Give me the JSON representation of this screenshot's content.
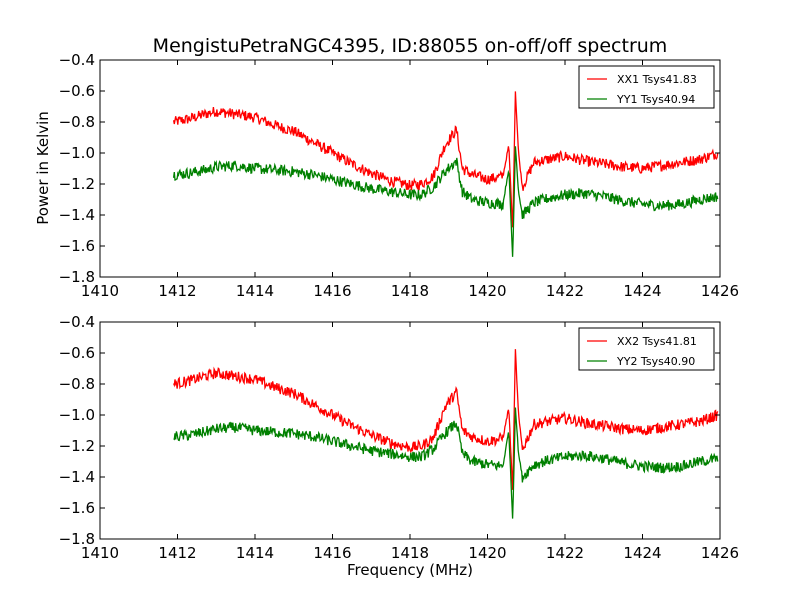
{
  "figure": {
    "title": "MengistuPetraNGC4395, ID:88055 on-off/off spectrum",
    "ylabel": "Power in Kelvin",
    "xlabel": "Frequency (MHz)"
  },
  "colors": {
    "red": "#ff0000",
    "green": "#008000"
  },
  "chart_data": [
    {
      "type": "line",
      "title": "MengistuPetraNGC4395, ID:88055 on-off/off spectrum",
      "xlabel": "",
      "ylabel": "Power in Kelvin",
      "xlim": [
        1410,
        1426
      ],
      "ylim": [
        -1.8,
        -0.4
      ],
      "xticks": [
        1410,
        1412,
        1414,
        1416,
        1418,
        1420,
        1422,
        1424,
        1426
      ],
      "yticks": [
        -0.4,
        -0.6,
        -0.8,
        -1.0,
        -1.2,
        -1.4,
        -1.6,
        -1.8
      ],
      "ytick_labels": [
        "−0.4",
        "−0.6",
        "−0.8",
        "−1.0",
        "−1.2",
        "−1.4",
        "−1.6",
        "−1.8"
      ],
      "grid": false,
      "legend_position": "top-right",
      "series": [
        {
          "name": "XX1 Tsys41.83",
          "color": "#ff0000",
          "x": [
            1411.9,
            1412.3,
            1412.7,
            1413.0,
            1413.5,
            1414.0,
            1414.5,
            1415.0,
            1415.5,
            1416.0,
            1416.5,
            1417.0,
            1417.5,
            1418.0,
            1418.3,
            1418.6,
            1418.9,
            1419.2,
            1419.35,
            1419.6,
            1420.0,
            1420.4,
            1420.55,
            1420.65,
            1420.72,
            1420.8,
            1420.9,
            1421.2,
            1421.6,
            1422.0,
            1422.5,
            1423.0,
            1423.5,
            1424.0,
            1424.5,
            1425.0,
            1425.5,
            1425.95
          ],
          "y": [
            -0.8,
            -0.78,
            -0.75,
            -0.73,
            -0.75,
            -0.77,
            -0.82,
            -0.86,
            -0.93,
            -1.0,
            -1.07,
            -1.13,
            -1.18,
            -1.21,
            -1.2,
            -1.15,
            -0.95,
            -0.85,
            -1.1,
            -1.14,
            -1.17,
            -1.15,
            -0.95,
            -1.5,
            -0.6,
            -1.0,
            -1.22,
            -1.06,
            -1.04,
            -1.02,
            -1.05,
            -1.07,
            -1.09,
            -1.1,
            -1.08,
            -1.06,
            -1.04,
            -1.0
          ]
        },
        {
          "name": "YY1 Tsys40.94",
          "color": "#008000",
          "x": [
            1411.9,
            1412.3,
            1412.7,
            1413.0,
            1413.5,
            1414.0,
            1414.5,
            1415.0,
            1415.5,
            1416.0,
            1416.5,
            1417.0,
            1417.5,
            1418.0,
            1418.3,
            1418.6,
            1418.9,
            1419.2,
            1419.35,
            1419.6,
            1420.0,
            1420.4,
            1420.55,
            1420.65,
            1420.72,
            1420.8,
            1420.9,
            1421.2,
            1421.6,
            1422.0,
            1422.5,
            1423.0,
            1423.5,
            1424.0,
            1424.5,
            1425.0,
            1425.5,
            1425.95
          ],
          "y": [
            -1.14,
            -1.13,
            -1.11,
            -1.09,
            -1.08,
            -1.1,
            -1.11,
            -1.12,
            -1.14,
            -1.17,
            -1.2,
            -1.23,
            -1.25,
            -1.27,
            -1.27,
            -1.22,
            -1.12,
            -1.05,
            -1.25,
            -1.3,
            -1.32,
            -1.33,
            -1.1,
            -1.68,
            -0.95,
            -1.25,
            -1.4,
            -1.32,
            -1.29,
            -1.27,
            -1.26,
            -1.28,
            -1.31,
            -1.33,
            -1.34,
            -1.33,
            -1.3,
            -1.28
          ]
        }
      ]
    },
    {
      "type": "line",
      "title": "",
      "xlabel": "Frequency (MHz)",
      "ylabel": "",
      "xlim": [
        1410,
        1426
      ],
      "ylim": [
        -1.8,
        -0.4
      ],
      "xticks": [
        1410,
        1412,
        1414,
        1416,
        1418,
        1420,
        1422,
        1424,
        1426
      ],
      "yticks": [
        -0.4,
        -0.6,
        -0.8,
        -1.0,
        -1.2,
        -1.4,
        -1.6,
        -1.8
      ],
      "ytick_labels": [
        "−0.4",
        "−0.6",
        "−0.8",
        "−1.0",
        "−1.2",
        "−1.4",
        "−1.6",
        "−1.8"
      ],
      "grid": false,
      "legend_position": "top-right",
      "series": [
        {
          "name": "XX2 Tsys41.81",
          "color": "#ff0000",
          "x": [
            1411.9,
            1412.3,
            1412.7,
            1413.0,
            1413.5,
            1414.0,
            1414.5,
            1415.0,
            1415.5,
            1416.0,
            1416.5,
            1417.0,
            1417.5,
            1418.0,
            1418.3,
            1418.6,
            1418.9,
            1419.2,
            1419.35,
            1419.6,
            1420.0,
            1420.4,
            1420.55,
            1420.65,
            1420.72,
            1420.8,
            1420.9,
            1421.2,
            1421.6,
            1422.0,
            1422.5,
            1423.0,
            1423.5,
            1424.0,
            1424.5,
            1425.0,
            1425.5,
            1425.95
          ],
          "y": [
            -0.8,
            -0.78,
            -0.75,
            -0.73,
            -0.75,
            -0.77,
            -0.82,
            -0.86,
            -0.93,
            -1.0,
            -1.07,
            -1.13,
            -1.18,
            -1.21,
            -1.2,
            -1.15,
            -0.95,
            -0.85,
            -1.1,
            -1.14,
            -1.17,
            -1.15,
            -0.95,
            -1.5,
            -0.58,
            -1.0,
            -1.22,
            -1.06,
            -1.04,
            -1.02,
            -1.05,
            -1.07,
            -1.09,
            -1.1,
            -1.08,
            -1.06,
            -1.04,
            -1.0
          ]
        },
        {
          "name": "YY2 Tsys40.90",
          "color": "#008000",
          "x": [
            1411.9,
            1412.3,
            1412.7,
            1413.0,
            1413.5,
            1414.0,
            1414.5,
            1415.0,
            1415.5,
            1416.0,
            1416.5,
            1417.0,
            1417.5,
            1418.0,
            1418.3,
            1418.6,
            1418.9,
            1419.2,
            1419.35,
            1419.6,
            1420.0,
            1420.4,
            1420.55,
            1420.65,
            1420.72,
            1420.8,
            1420.9,
            1421.2,
            1421.6,
            1422.0,
            1422.5,
            1423.0,
            1423.5,
            1424.0,
            1424.5,
            1425.0,
            1425.5,
            1425.95
          ],
          "y": [
            -1.14,
            -1.13,
            -1.11,
            -1.09,
            -1.08,
            -1.1,
            -1.11,
            -1.12,
            -1.14,
            -1.17,
            -1.2,
            -1.23,
            -1.25,
            -1.27,
            -1.27,
            -1.22,
            -1.12,
            -1.05,
            -1.25,
            -1.3,
            -1.32,
            -1.33,
            -1.1,
            -1.68,
            -0.95,
            -1.25,
            -1.4,
            -1.32,
            -1.29,
            -1.27,
            -1.26,
            -1.28,
            -1.31,
            -1.33,
            -1.34,
            -1.33,
            -1.3,
            -1.28
          ]
        }
      ]
    }
  ]
}
